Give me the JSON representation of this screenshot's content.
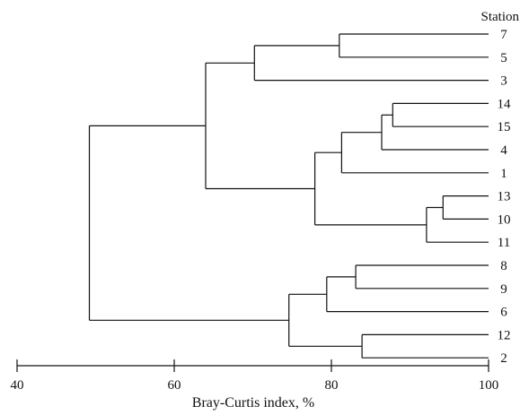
{
  "legend_title": "Station",
  "xlabel": "Bray-Curtis index, %",
  "chart_data": {
    "type": "dendrogram",
    "title": "",
    "xlabel": "Bray-Curtis index, %",
    "xlim": [
      40,
      100
    ],
    "x_ticks": [
      40,
      60,
      80,
      100
    ],
    "leaf_header": "Station",
    "leaves": [
      "7",
      "5",
      "3",
      "14",
      "15",
      "4",
      "1",
      "13",
      "10",
      "11",
      "8",
      "9",
      "6",
      "12",
      "2"
    ],
    "merges": [
      {
        "id": "m_7_5",
        "children": [
          "7",
          "5"
        ],
        "similarity": 81
      },
      {
        "id": "m_753",
        "children": [
          "m_7_5",
          "3"
        ],
        "similarity": 70.2
      },
      {
        "id": "m_14_15",
        "children": [
          "14",
          "15"
        ],
        "similarity": 87.8
      },
      {
        "id": "m_14_15_4",
        "children": [
          "m_14_15",
          "4"
        ],
        "similarity": 86.4
      },
      {
        "id": "m_14_15_4_1",
        "children": [
          "m_14_15_4",
          "1"
        ],
        "similarity": 81.3
      },
      {
        "id": "m_13_10",
        "children": [
          "13",
          "10"
        ],
        "similarity": 94.2
      },
      {
        "id": "m_13_10_11",
        "children": [
          "m_13_10",
          "11"
        ],
        "similarity": 92.1
      },
      {
        "id": "m_group_b",
        "children": [
          "m_14_15_4_1",
          "m_13_10_11"
        ],
        "similarity": 77.9
      },
      {
        "id": "m_upper",
        "children": [
          "m_753",
          "m_group_b"
        ],
        "similarity": 64.0
      },
      {
        "id": "m_8_9",
        "children": [
          "8",
          "9"
        ],
        "similarity": 83.1
      },
      {
        "id": "m_8_9_6",
        "children": [
          "m_8_9",
          "6"
        ],
        "similarity": 79.4
      },
      {
        "id": "m_12_2",
        "children": [
          "12",
          "2"
        ],
        "similarity": 83.9
      },
      {
        "id": "m_lower",
        "children": [
          "m_8_9_6",
          "m_12_2"
        ],
        "similarity": 74.6
      },
      {
        "id": "m_root",
        "children": [
          "m_upper",
          "m_lower"
        ],
        "similarity": 49.2
      }
    ]
  }
}
